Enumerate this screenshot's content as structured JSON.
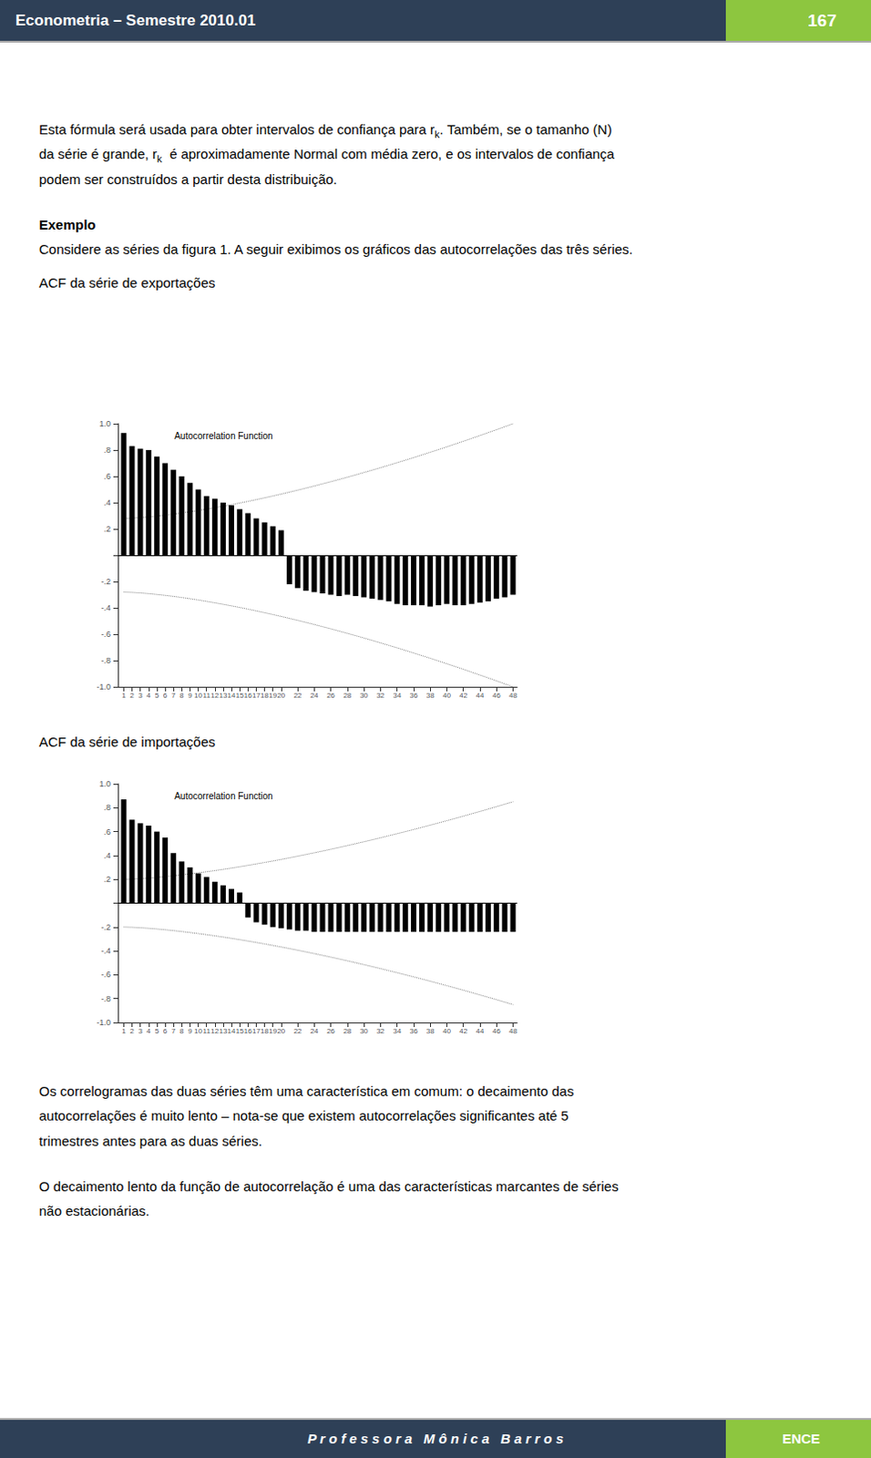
{
  "header": {
    "title": "Econometria – Semestre 2010.01",
    "number": "167",
    "color": "#2E4057",
    "number_color": "#8DC63F"
  },
  "footer": {
    "text": "P r o f e s s o r a   M ô n i c a   B a r r o s",
    "right": "ENCE"
  },
  "text_before": [
    [
      "Esta fórmula será usada para obter intervalos de confiança para r",
      {
        "text": "k",
        "subscript": true
      },
      ". Também, se o tamanho (N)"
    ],
    [
      "da série é grande, r",
      {
        "text": "k",
        "subscript": true
      },
      "  é aproximadamente Normal com média zero, e os intervalos de confiança"
    ],
    [
      "podem ser construídos a partir desta distribuição."
    ],
    [
      {
        "text": "Exemplo",
        "bold": true
      }
    ],
    [
      "Considere as séries da figura 1. A seguir exibimos os gráficos das autocorrelações das três séries."
    ],
    [
      "ACF da série de exportações"
    ]
  ],
  "text_between": [
    [
      "ACF da série de importações"
    ]
  ],
  "text_after": [
    [
      "Os correlogramas das duas séries têm uma característica em comum: o decaimento das"
    ],
    [
      "autocorrelações é muito lento – nota-se que existem autocorrelações significantes até 5"
    ],
    [
      "trimestres antes para as duas séries."
    ],
    [
      "O decaimento lento da função de autocorrelação é uma das características marcantes de séries"
    ],
    [
      "não estacionárias."
    ]
  ],
  "chart_data": [
    {
      "type": "bar",
      "title": "Autocorrelation Function",
      "x": [
        1,
        2,
        3,
        4,
        5,
        6,
        7,
        8,
        9,
        10,
        11,
        12,
        13,
        14,
        15,
        16,
        17,
        18,
        19,
        20,
        21,
        22,
        23,
        24,
        25,
        26,
        27,
        28,
        29,
        30,
        31,
        32,
        33,
        34,
        35,
        36,
        37,
        38,
        39,
        40,
        41,
        42,
        43,
        44,
        45,
        46,
        47,
        48
      ],
      "xlim": [
        0.3,
        48.5
      ],
      "xticks": [
        1,
        2,
        3,
        4,
        5,
        6,
        7,
        8,
        9,
        10,
        11,
        12,
        13,
        14,
        15,
        16,
        17,
        18,
        19,
        20,
        22,
        24,
        26,
        28,
        30,
        32,
        34,
        36,
        38,
        40,
        42,
        44,
        46,
        48
      ],
      "ylim": [
        -1,
        1
      ],
      "yticks": [
        {
          "value": -1,
          "label": "-1.0"
        },
        {
          "value": -0.8,
          "label": "-.8"
        },
        {
          "value": -0.6,
          "label": "-.6"
        },
        {
          "value": -0.4,
          "label": "-.4"
        },
        {
          "value": -0.2,
          "label": "-.2"
        },
        {
          "value": 0,
          "label": null
        },
        {
          "value": 0.2,
          "label": ".2"
        },
        {
          "value": 0.4,
          "label": ".4"
        },
        {
          "value": 0.6,
          "label": ".6"
        },
        {
          "value": 0.8,
          "label": ".8"
        },
        {
          "value": 1,
          "label": "1.0"
        }
      ],
      "grid": false,
      "series": [
        {
          "type": "bar",
          "color": "black",
          "values": [
            0.93,
            0.83,
            0.81,
            0.8,
            0.75,
            0.7,
            0.65,
            0.6,
            0.55,
            0.5,
            0.45,
            0.43,
            0.4,
            0.38,
            0.35,
            0.32,
            0.28,
            0.25,
            0.22,
            0.19,
            -0.22,
            -0.25,
            -0.27,
            -0.28,
            -0.29,
            -0.3,
            -0.31,
            -0.3,
            -0.31,
            -0.32,
            -0.33,
            -0.34,
            -0.35,
            -0.37,
            -0.38,
            -0.38,
            -0.38,
            -0.39,
            -0.38,
            -0.37,
            -0.38,
            -0.38,
            -0.37,
            -0.36,
            -0.35,
            -0.33,
            -0.32,
            -0.3
          ]
        },
        {
          "type": "line",
          "color": "gray",
          "line_style": "dotted",
          "values": [
            0.28,
            0.2822,
            0.2863,
            0.2916,
            0.2979,
            0.305,
            0.3128,
            0.3214,
            0.3306,
            0.3403,
            0.3507,
            0.3615,
            0.3729,
            0.3847,
            0.3971,
            0.4098,
            0.423,
            0.4366,
            0.4506,
            0.4651,
            0.4799,
            0.495,
            0.5106,
            0.5265,
            0.5427,
            0.5593,
            0.5762,
            0.5935,
            0.6111,
            0.629,
            0.6472,
            0.6657,
            0.6845,
            0.7036,
            0.723,
            0.7427,
            0.7627,
            0.7829,
            0.8034,
            0.8242,
            0.8453,
            0.8666,
            0.8882,
            0.9101,
            0.9322,
            0.9545,
            0.9771,
            1.0
          ]
        },
        {
          "type": "line",
          "color": "gray",
          "line_style": "dotted",
          "values": [
            -0.28,
            -0.2822,
            -0.2863,
            -0.2916,
            -0.2979,
            -0.305,
            -0.3128,
            -0.3214,
            -0.3306,
            -0.3403,
            -0.3507,
            -0.3615,
            -0.3729,
            -0.3847,
            -0.3971,
            -0.4098,
            -0.423,
            -0.4366,
            -0.4506,
            -0.4651,
            -0.4799,
            -0.495,
            -0.5106,
            -0.5265,
            -0.5427,
            -0.5593,
            -0.5762,
            -0.5935,
            -0.6111,
            -0.629,
            -0.6472,
            -0.6657,
            -0.6845,
            -0.7036,
            -0.723,
            -0.7427,
            -0.7627,
            -0.7829,
            -0.8034,
            -0.8242,
            -0.8453,
            -0.8666,
            -0.8882,
            -0.9101,
            -0.9322,
            -0.9545,
            -0.9771,
            -1.0
          ]
        }
      ]
    },
    {
      "type": "bar",
      "title": "Autocorrelation Function",
      "x": [
        1,
        2,
        3,
        4,
        5,
        6,
        7,
        8,
        9,
        10,
        11,
        12,
        13,
        14,
        15,
        16,
        17,
        18,
        19,
        20,
        21,
        22,
        23,
        24,
        25,
        26,
        27,
        28,
        29,
        30,
        31,
        32,
        33,
        34,
        35,
        36,
        37,
        38,
        39,
        40,
        41,
        42,
        43,
        44,
        45,
        46,
        47,
        48
      ],
      "xlim": [
        0.3,
        48.5
      ],
      "xticks": [
        1,
        2,
        3,
        4,
        5,
        6,
        7,
        8,
        9,
        10,
        11,
        12,
        13,
        14,
        15,
        16,
        17,
        18,
        19,
        20,
        22,
        24,
        26,
        28,
        30,
        32,
        34,
        36,
        38,
        40,
        42,
        44,
        46,
        48
      ],
      "ylim": [
        -1,
        1
      ],
      "yticks": [
        {
          "value": -1,
          "label": "-1.0"
        },
        {
          "value": -0.8,
          "label": "-.8"
        },
        {
          "value": -0.6,
          "label": "-.6"
        },
        {
          "value": -0.4,
          "label": "-.4"
        },
        {
          "value": -0.2,
          "label": "-.2"
        },
        {
          "value": 0,
          "label": null
        },
        {
          "value": 0.2,
          "label": ".2"
        },
        {
          "value": 0.4,
          "label": ".4"
        },
        {
          "value": 0.6,
          "label": ".6"
        },
        {
          "value": 0.8,
          "label": ".8"
        },
        {
          "value": 1,
          "label": "1.0"
        }
      ],
      "grid": false,
      "series": [
        {
          "type": "bar",
          "color": "black",
          "values": [
            0.87,
            0.7,
            0.67,
            0.65,
            0.6,
            0.55,
            0.42,
            0.35,
            0.3,
            0.25,
            0.22,
            0.18,
            0.15,
            0.12,
            0.09,
            -0.12,
            -0.16,
            -0.18,
            -0.2,
            -0.21,
            -0.22,
            -0.23,
            -0.23,
            -0.24,
            -0.24,
            -0.24,
            -0.24,
            -0.24,
            -0.24,
            -0.24,
            -0.24,
            -0.24,
            -0.24,
            -0.24,
            -0.24,
            -0.24,
            -0.24,
            -0.24,
            -0.24,
            -0.24,
            -0.24,
            -0.24,
            -0.24,
            -0.24,
            -0.24,
            -0.24,
            -0.24,
            -0.24
          ]
        },
        {
          "type": "line",
          "color": "gray",
          "line_style": "dotted",
          "values": [
            0.2,
            0.202,
            0.2057,
            0.2105,
            0.2161,
            0.2226,
            0.2296,
            0.2374,
            0.2456,
            0.2545,
            0.2638,
            0.2736,
            0.2839,
            0.2946,
            0.3057,
            0.3172,
            0.3291,
            0.3414,
            0.3541,
            0.3671,
            0.3804,
            0.3941,
            0.4082,
            0.4225,
            0.4372,
            0.4522,
            0.4674,
            0.483,
            0.4989,
            0.515,
            0.5315,
            0.5482,
            0.5652,
            0.5824,
            0.5999,
            0.6177,
            0.6357,
            0.654,
            0.6725,
            0.6913,
            0.7103,
            0.7296,
            0.7491,
            0.7688,
            0.7888,
            0.809,
            0.8294,
            0.85
          ]
        },
        {
          "type": "line",
          "color": "gray",
          "line_style": "dotted",
          "values": [
            -0.2,
            -0.202,
            -0.2057,
            -0.2105,
            -0.2161,
            -0.2226,
            -0.2296,
            -0.2374,
            -0.2456,
            -0.2545,
            -0.2638,
            -0.2736,
            -0.2839,
            -0.2946,
            -0.3057,
            -0.3172,
            -0.3291,
            -0.3414,
            -0.3541,
            -0.3671,
            -0.3804,
            -0.3941,
            -0.4082,
            -0.4225,
            -0.4372,
            -0.4522,
            -0.4674,
            -0.483,
            -0.4989,
            -0.515,
            -0.5315,
            -0.5482,
            -0.5652,
            -0.5824,
            -0.5999,
            -0.6177,
            -0.6357,
            -0.654,
            -0.6725,
            -0.6913,
            -0.7103,
            -0.7296,
            -0.7491,
            -0.7688,
            -0.7888,
            -0.809,
            -0.8294,
            -0.85
          ]
        }
      ]
    }
  ]
}
